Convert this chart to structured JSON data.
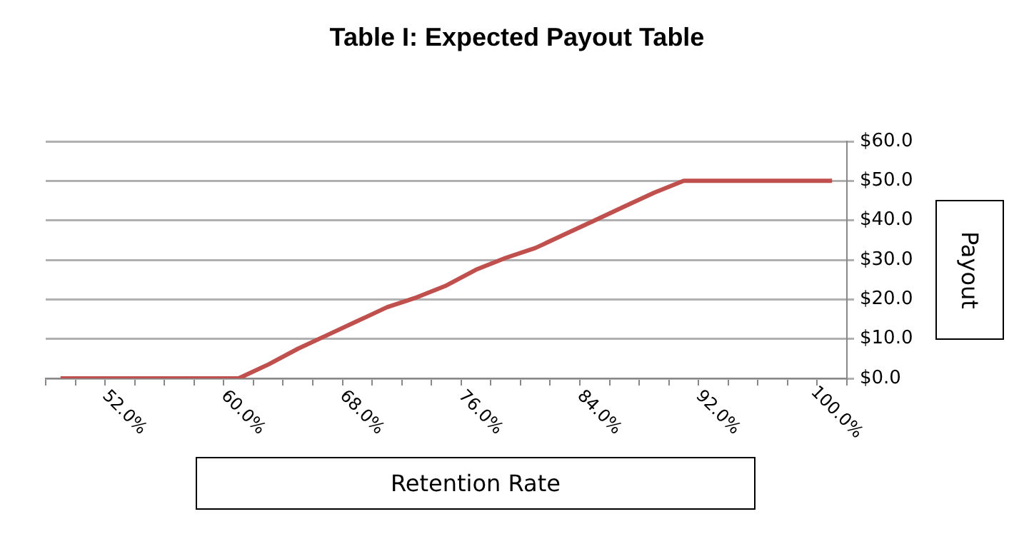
{
  "chart_data": {
    "type": "line",
    "title": "Table I: Expected Payout Table",
    "xlabel": "Retention Rate",
    "ylabel": "Payout",
    "categories": [
      null,
      null,
      "52.0%",
      null,
      null,
      null,
      "60.0%",
      null,
      null,
      null,
      "68.0%",
      null,
      null,
      null,
      "76.0%",
      null,
      null,
      null,
      "84.0%",
      null,
      null,
      null,
      "92.0%",
      null,
      null,
      null,
      "100.0%"
    ],
    "values": [
      0,
      0,
      0,
      0,
      0,
      0,
      0,
      3.5,
      7.5,
      11,
      14.5,
      18,
      20.5,
      23.5,
      27.5,
      30.5,
      33,
      36.5,
      40,
      43.5,
      47,
      50,
      50,
      50,
      50,
      50,
      50
    ],
    "color": "#c0504d",
    "marker": "none",
    "ylim": [
      0,
      60
    ],
    "yticks": [
      {
        "value": 0,
        "label": "$0.0"
      },
      {
        "value": 10,
        "label": "$10.0"
      },
      {
        "value": 20,
        "label": "$20.0"
      },
      {
        "value": 30,
        "label": "$30.0"
      },
      {
        "value": 40,
        "label": "$40.0"
      },
      {
        "value": 50,
        "label": "$50.0"
      },
      {
        "value": 60,
        "label": "$60.0"
      }
    ],
    "grid": "y"
  }
}
